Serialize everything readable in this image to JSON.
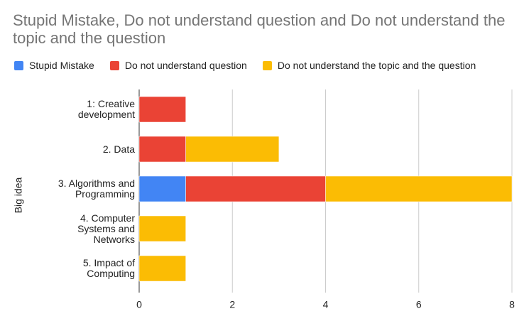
{
  "chart_data": {
    "type": "stacked-bar-horizontal",
    "title": "Stupid Mistake, Do not understand question and Do not understand the topic and the question",
    "y_label": "Big idea",
    "categories": [
      "1: Creative development",
      "2. Data",
      "3. Algorithms and Programming",
      "4. Computer Systems and Networks",
      "5. Impact of Computing"
    ],
    "series": [
      {
        "name": "Stupid Mistake",
        "color": "#4285f4",
        "values": [
          0,
          0,
          1,
          0,
          0
        ]
      },
      {
        "name": "Do not understand question",
        "color": "#ea4335",
        "values": [
          1,
          1,
          3,
          0,
          0
        ]
      },
      {
        "name": "Do not understand the topic and the question",
        "color": "#fbbc04",
        "values": [
          0,
          2,
          4,
          1,
          1
        ]
      }
    ],
    "xlim": [
      0,
      8
    ],
    "xticks": [
      0,
      2,
      4,
      6,
      8
    ],
    "grid": true,
    "legend": "top"
  }
}
